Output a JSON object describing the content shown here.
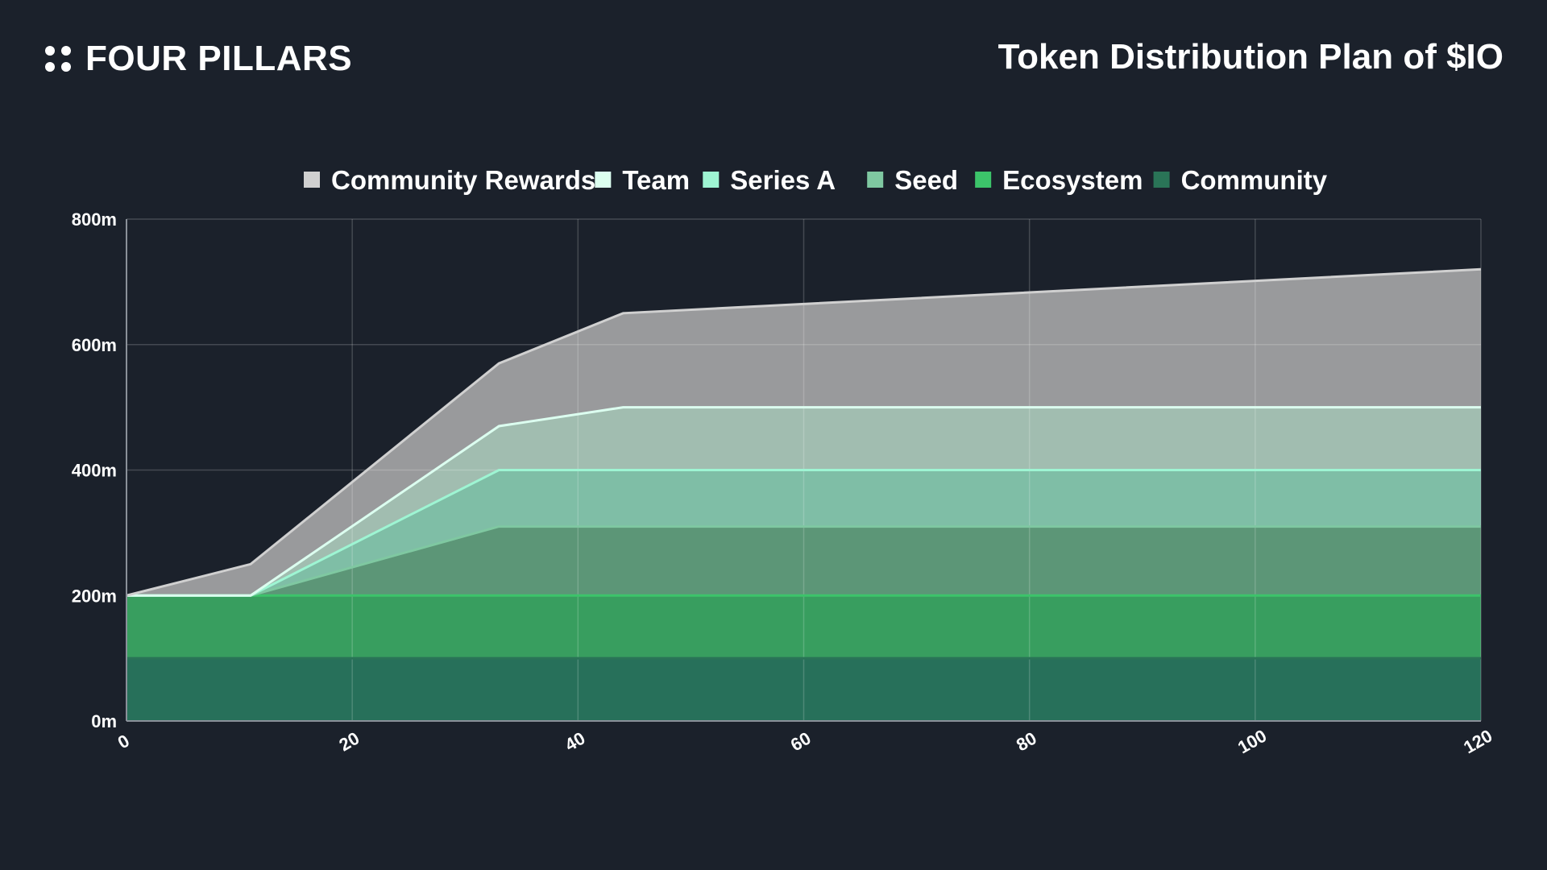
{
  "header": {
    "brand_name": "FOUR PILLARS",
    "title": "Token Distribution Plan of $IO"
  },
  "colors": {
    "background": "#1b212b",
    "grid": "#4a505a",
    "axis": "#8a9099"
  },
  "chart_data": {
    "type": "area",
    "stacked": true,
    "title": "Token Distribution Plan of $IO",
    "xlabel": "",
    "ylabel": "",
    "xlim": [
      0,
      120
    ],
    "ylim": [
      0,
      800
    ],
    "x_ticks": [
      "0",
      "20",
      "40",
      "60",
      "80",
      "100",
      "120"
    ],
    "y_ticks": [
      "0m",
      "200m",
      "400m",
      "600m",
      "800m"
    ],
    "grid": true,
    "legend_position": "top",
    "x": [
      0,
      11,
      33,
      44,
      120
    ],
    "series": [
      {
        "name": "Community",
        "color": "#2a7457",
        "fill": "#27705a",
        "values": [
          100,
          100,
          100,
          100,
          100
        ]
      },
      {
        "name": "Ecosystem",
        "color": "#3cc46a",
        "fill": "#389e5f",
        "values": [
          100,
          100,
          100,
          100,
          100
        ]
      },
      {
        "name": "Seed",
        "color": "#7fc8a1",
        "fill": "#5c9677",
        "values": [
          0,
          0,
          110,
          110,
          110
        ]
      },
      {
        "name": "Series A",
        "color": "#9ef5d3",
        "fill": "#7fbea6",
        "values": [
          0,
          0,
          90,
          90,
          90
        ]
      },
      {
        "name": "Team",
        "color": "#dcfff0",
        "fill": "#a1bdb0",
        "values": [
          0,
          0,
          70,
          100,
          100
        ]
      },
      {
        "name": "Community Rewards",
        "color": "#d0d0d0",
        "fill": "#999a9c",
        "values": [
          0,
          50,
          100,
          150,
          220
        ]
      }
    ],
    "legend_order": [
      "Community Rewards",
      "Team",
      "Series A",
      "Seed",
      "Ecosystem",
      "Community"
    ]
  }
}
